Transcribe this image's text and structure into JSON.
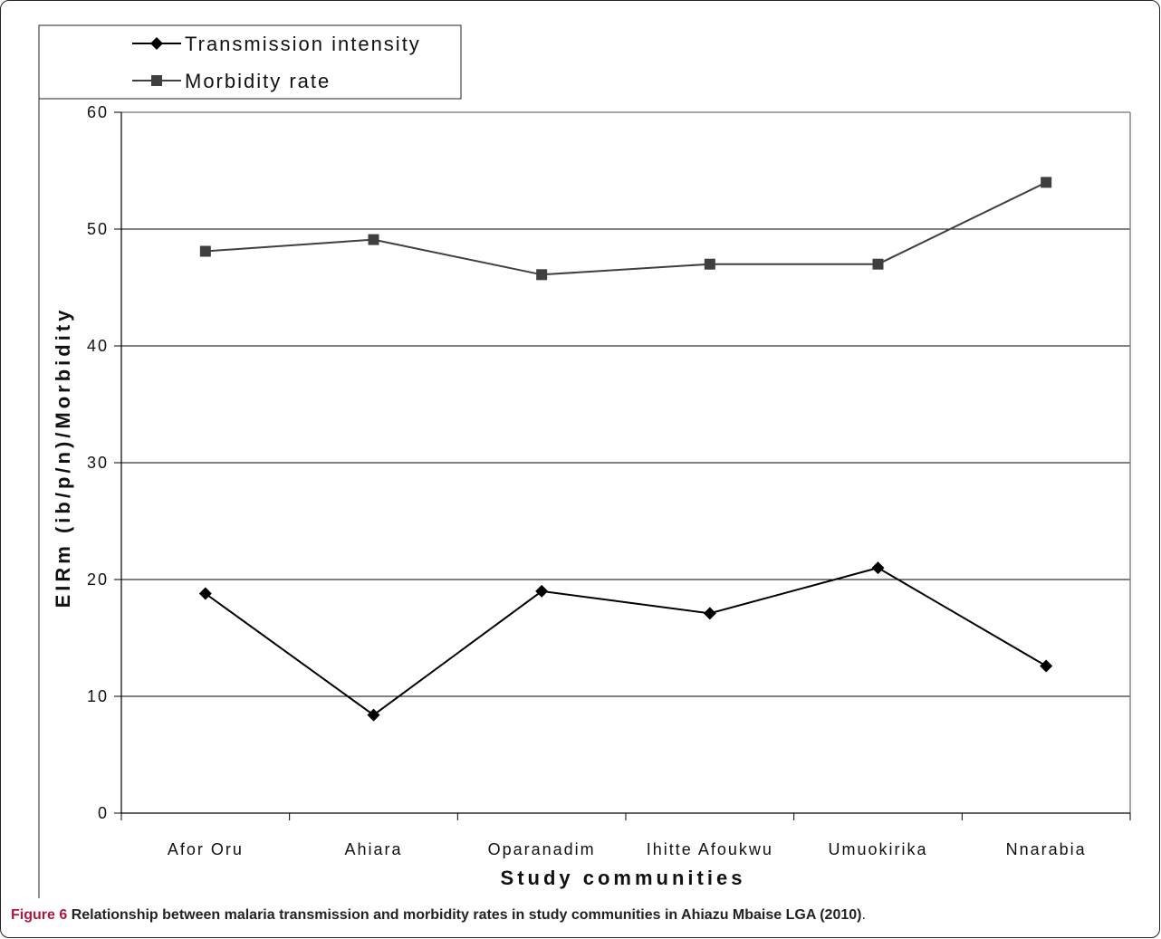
{
  "chart_data": {
    "type": "line",
    "categories": [
      "Afor Oru",
      "Ahiara",
      "Oparanadim",
      "Ihitte Afoukwu",
      "Umuokirika",
      "Nnarabia"
    ],
    "series": [
      {
        "name": "Transmission intensity",
        "values": [
          18.8,
          8.4,
          19.0,
          17.1,
          21.0,
          12.6
        ],
        "color": "#000000",
        "marker": "diamond"
      },
      {
        "name": "Morbidity rate",
        "values": [
          48.1,
          49.1,
          46.1,
          47.0,
          47.0,
          54.0
        ],
        "color": "#3f3f3f",
        "marker": "square"
      }
    ],
    "xlabel": "Study communities",
    "ylabel": "EIRm (ib/p/n)/Morbidity",
    "ylim": [
      0,
      60
    ],
    "yticks": [
      0,
      10,
      20,
      30,
      40,
      50,
      60
    ],
    "grid": true,
    "legend_position": "top-left"
  },
  "legend": {
    "series1_label": "Transmission intensity",
    "series2_label": "Morbidity rate"
  },
  "axes": {
    "xlabel": "Study communities",
    "ylabel": "EIRm (ib/p/n)/Morbidity"
  },
  "caption": {
    "figure_label": "Figure 6",
    "title": "Relationship between malaria transmission and morbidity rates in study communities in Ahiazu Mbaise LGA (2010)",
    "end": "."
  }
}
